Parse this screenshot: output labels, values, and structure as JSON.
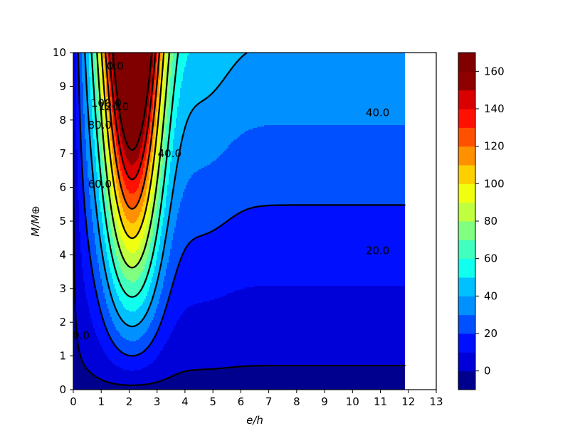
{
  "chart_data": {
    "type": "contour",
    "xlabel": "e/h",
    "ylabel": "M/M⊕",
    "xlim": [
      0,
      13
    ],
    "ylim": [
      0,
      10
    ],
    "data_x_extent": [
      0,
      11.87
    ],
    "x_ticks": [
      "0",
      "1",
      "2",
      "3",
      "4",
      "5",
      "6",
      "7",
      "8",
      "9",
      "10",
      "11",
      "12",
      "13"
    ],
    "y_ticks": [
      "0",
      "1",
      "2",
      "3",
      "4",
      "5",
      "6",
      "7",
      "8",
      "9",
      "10"
    ],
    "colormap": "jet",
    "filled_levels": [
      -10,
      0,
      10,
      20,
      30,
      40,
      50,
      60,
      70,
      80,
      90,
      100,
      110,
      120,
      130,
      140,
      150,
      160,
      170
    ],
    "colors": [
      "#00008f",
      "#0000d9",
      "#0010ff",
      "#0050ff",
      "#0090ff",
      "#00c0ff",
      "#10ffef",
      "#40ffbf",
      "#80ff80",
      "#bfff40",
      "#f0ff10",
      "#ffd000",
      "#ff9000",
      "#ff5000",
      "#ff1000",
      "#d90000",
      "#8f0000",
      "#800000"
    ],
    "contour_lines": [
      0,
      20,
      40,
      60,
      80,
      100,
      120,
      140,
      160
    ],
    "contour_labels": [
      {
        "text": "0.0",
        "x": 0.28,
        "y": 1.6
      },
      {
        "text": "20.0",
        "x": 10.9,
        "y": 4.12
      },
      {
        "text": "40.0",
        "x": 10.9,
        "y": 8.22
      },
      {
        "text": "40.0",
        "x": 3.45,
        "y": 7.0
      },
      {
        "text": "60.0",
        "x": 0.95,
        "y": 6.1
      },
      {
        "text": "80.0",
        "x": 0.95,
        "y": 7.85
      },
      {
        "text": "100.0",
        "x": 1.18,
        "y": 8.5
      },
      {
        "text": "120.0",
        "x": 1.45,
        "y": 8.4
      },
      {
        "text": "0.0",
        "x": 1.5,
        "y": 9.6
      }
    ],
    "colorbar": {
      "range": [
        -10,
        170
      ],
      "ticks": [
        "0",
        "20",
        "40",
        "60",
        "80",
        "100",
        "120",
        "140",
        "160"
      ]
    }
  }
}
